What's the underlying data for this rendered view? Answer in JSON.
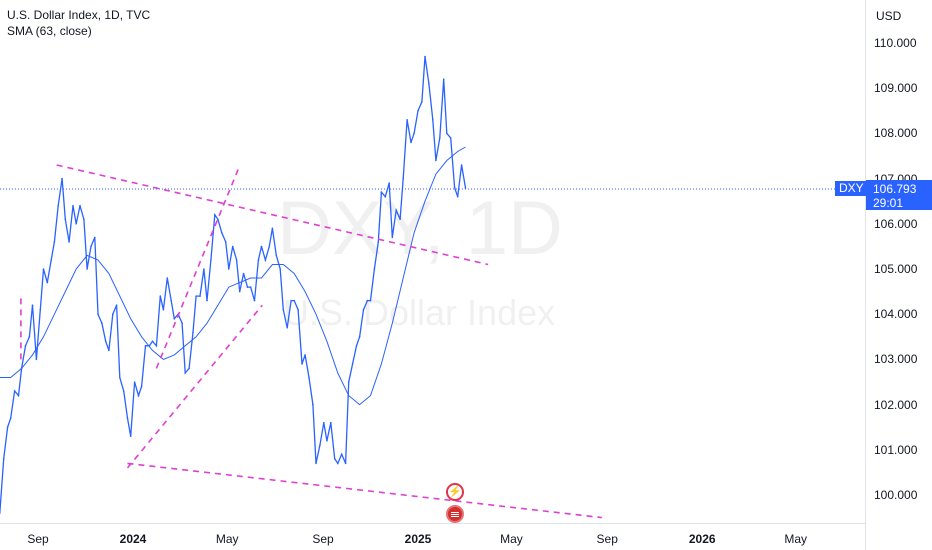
{
  "header": {
    "title": "U.S. Dollar Index, 1D, TVC",
    "indicator": "SMA (63, close)"
  },
  "watermark": {
    "symbol": "DXY, 1D",
    "name": "U.S. Dollar Index"
  },
  "price_scale": {
    "currency": "USD"
  },
  "last_price": {
    "ticker": "DXY",
    "value": "106.793",
    "countdown": "29:01"
  },
  "events": {
    "flash_icon": "lightning-icon",
    "flag_icon": "us-flag-icon"
  },
  "colors": {
    "price": "#2962ff",
    "sma": "#2962ff",
    "trendlines": "#e040d0",
    "last_price_tag": "#2962ff"
  },
  "chart_data": {
    "type": "line",
    "title": "U.S. Dollar Index, 1D, TVC",
    "xlabel": "",
    "ylabel": "",
    "ylim": [
      99.5,
      110.5
    ],
    "yticks": [
      "100.000",
      "101.000",
      "102.000",
      "103.000",
      "104.000",
      "105.000",
      "106.000",
      "107.000",
      "108.000",
      "109.000",
      "110.000"
    ],
    "xticks": [
      {
        "label": "Sep",
        "date": "2023-09-01",
        "major": false
      },
      {
        "label": "2024",
        "date": "2024-01-01",
        "major": true
      },
      {
        "label": "May",
        "date": "2024-05-01",
        "major": false
      },
      {
        "label": "Sep",
        "date": "2024-09-01",
        "major": false
      },
      {
        "label": "2025",
        "date": "2025-01-01",
        "major": true
      },
      {
        "label": "May",
        "date": "2025-05-01",
        "major": false
      },
      {
        "label": "Sep",
        "date": "2025-09-01",
        "major": false
      },
      {
        "label": "2026",
        "date": "2026-01-01",
        "major": true
      },
      {
        "label": "May",
        "date": "2026-05-01",
        "major": false
      }
    ],
    "series": [
      {
        "name": "U.S. Dollar Index",
        "points": [
          [
            "2023-07-14",
            99.6
          ],
          [
            "2023-07-19",
            100.8
          ],
          [
            "2023-07-24",
            101.5
          ],
          [
            "2023-07-28",
            101.7
          ],
          [
            "2023-08-02",
            102.3
          ],
          [
            "2023-08-07",
            102.2
          ],
          [
            "2023-08-11",
            102.8
          ],
          [
            "2023-08-16",
            103.3
          ],
          [
            "2023-08-21",
            103.5
          ],
          [
            "2023-08-25",
            104.2
          ],
          [
            "2023-08-30",
            103.0
          ],
          [
            "2023-09-04",
            104.1
          ],
          [
            "2023-09-08",
            105.0
          ],
          [
            "2023-09-13",
            104.7
          ],
          [
            "2023-09-18",
            105.2
          ],
          [
            "2023-09-22",
            105.6
          ],
          [
            "2023-09-27",
            106.4
          ],
          [
            "2023-10-02",
            107.0
          ],
          [
            "2023-10-06",
            106.1
          ],
          [
            "2023-10-11",
            105.6
          ],
          [
            "2023-10-16",
            106.4
          ],
          [
            "2023-10-20",
            106.0
          ],
          [
            "2023-10-25",
            106.4
          ],
          [
            "2023-10-30",
            106.1
          ],
          [
            "2023-11-03",
            105.0
          ],
          [
            "2023-11-08",
            105.5
          ],
          [
            "2023-11-13",
            105.7
          ],
          [
            "2023-11-17",
            104.0
          ],
          [
            "2023-11-22",
            103.8
          ],
          [
            "2023-11-27",
            103.4
          ],
          [
            "2023-12-01",
            103.2
          ],
          [
            "2023-12-06",
            104.0
          ],
          [
            "2023-12-11",
            104.2
          ],
          [
            "2023-12-15",
            102.6
          ],
          [
            "2023-12-20",
            102.3
          ],
          [
            "2023-12-25",
            101.7
          ],
          [
            "2023-12-29",
            101.3
          ],
          [
            "2024-01-03",
            102.5
          ],
          [
            "2024-01-08",
            102.2
          ],
          [
            "2024-01-12",
            102.4
          ],
          [
            "2024-01-17",
            103.3
          ],
          [
            "2024-01-22",
            103.3
          ],
          [
            "2024-01-26",
            103.4
          ],
          [
            "2024-01-31",
            103.3
          ],
          [
            "2024-02-05",
            104.4
          ],
          [
            "2024-02-09",
            104.1
          ],
          [
            "2024-02-14",
            104.8
          ],
          [
            "2024-02-19",
            104.3
          ],
          [
            "2024-02-23",
            103.9
          ],
          [
            "2024-02-28",
            104.0
          ],
          [
            "2024-03-04",
            103.8
          ],
          [
            "2024-03-08",
            102.7
          ],
          [
            "2024-03-13",
            102.8
          ],
          [
            "2024-03-18",
            103.6
          ],
          [
            "2024-03-22",
            104.4
          ],
          [
            "2024-03-27",
            104.4
          ],
          [
            "2024-04-01",
            105.0
          ],
          [
            "2024-04-05",
            104.3
          ],
          [
            "2024-04-10",
            105.2
          ],
          [
            "2024-04-15",
            106.2
          ],
          [
            "2024-04-19",
            106.1
          ],
          [
            "2024-04-24",
            105.8
          ],
          [
            "2024-04-29",
            105.6
          ],
          [
            "2024-05-03",
            105.0
          ],
          [
            "2024-05-08",
            105.5
          ],
          [
            "2024-05-13",
            105.2
          ],
          [
            "2024-05-17",
            104.5
          ],
          [
            "2024-05-22",
            104.9
          ],
          [
            "2024-05-27",
            104.6
          ],
          [
            "2024-05-31",
            104.6
          ],
          [
            "2024-06-05",
            104.3
          ],
          [
            "2024-06-10",
            105.2
          ],
          [
            "2024-06-14",
            105.5
          ],
          [
            "2024-06-19",
            105.2
          ],
          [
            "2024-06-24",
            105.5
          ],
          [
            "2024-06-28",
            105.9
          ],
          [
            "2024-07-03",
            105.3
          ],
          [
            "2024-07-08",
            105.0
          ],
          [
            "2024-07-12",
            104.1
          ],
          [
            "2024-07-17",
            103.7
          ],
          [
            "2024-07-22",
            104.3
          ],
          [
            "2024-07-26",
            104.3
          ],
          [
            "2024-07-31",
            104.1
          ],
          [
            "2024-08-05",
            102.9
          ],
          [
            "2024-08-09",
            103.1
          ],
          [
            "2024-08-14",
            102.6
          ],
          [
            "2024-08-19",
            102.0
          ],
          [
            "2024-08-23",
            100.7
          ],
          [
            "2024-08-28",
            101.1
          ],
          [
            "2024-09-02",
            101.6
          ],
          [
            "2024-09-06",
            101.2
          ],
          [
            "2024-09-11",
            101.6
          ],
          [
            "2024-09-16",
            100.8
          ],
          [
            "2024-09-20",
            100.7
          ],
          [
            "2024-09-25",
            100.9
          ],
          [
            "2024-09-30",
            100.7
          ],
          [
            "2024-10-04",
            102.5
          ],
          [
            "2024-10-09",
            102.9
          ],
          [
            "2024-10-14",
            103.3
          ],
          [
            "2024-10-18",
            103.5
          ],
          [
            "2024-10-23",
            104.1
          ],
          [
            "2024-10-28",
            104.3
          ],
          [
            "2024-11-01",
            104.3
          ],
          [
            "2024-11-06",
            105.0
          ],
          [
            "2024-11-11",
            105.6
          ],
          [
            "2024-11-15",
            106.7
          ],
          [
            "2024-11-20",
            106.6
          ],
          [
            "2024-11-25",
            106.9
          ],
          [
            "2024-11-29",
            105.7
          ],
          [
            "2024-12-04",
            106.3
          ],
          [
            "2024-12-09",
            106.1
          ],
          [
            "2024-12-13",
            107.0
          ],
          [
            "2024-12-18",
            108.3
          ],
          [
            "2024-12-23",
            107.8
          ],
          [
            "2024-12-27",
            108.0
          ],
          [
            "2025-01-01",
            108.5
          ],
          [
            "2025-01-06",
            108.7
          ],
          [
            "2025-01-10",
            109.7
          ],
          [
            "2025-01-15",
            109.1
          ],
          [
            "2025-01-20",
            108.3
          ],
          [
            "2025-01-24",
            107.4
          ],
          [
            "2025-01-29",
            107.9
          ],
          [
            "2025-02-03",
            109.2
          ],
          [
            "2025-02-07",
            108.0
          ],
          [
            "2025-02-12",
            107.9
          ],
          [
            "2025-02-17",
            106.8
          ],
          [
            "2025-02-21",
            106.6
          ],
          [
            "2025-02-26",
            107.3
          ],
          [
            "2025-03-03",
            106.793
          ]
        ]
      },
      {
        "name": "SMA (63, close)",
        "points": [
          [
            "2023-07-14",
            102.6
          ],
          [
            "2023-07-28",
            102.6
          ],
          [
            "2023-08-11",
            102.8
          ],
          [
            "2023-08-25",
            103.1
          ],
          [
            "2023-09-08",
            103.5
          ],
          [
            "2023-09-22",
            104.0
          ],
          [
            "2023-10-06",
            104.5
          ],
          [
            "2023-10-20",
            105.0
          ],
          [
            "2023-11-03",
            105.3
          ],
          [
            "2023-11-17",
            105.2
          ],
          [
            "2023-12-01",
            104.9
          ],
          [
            "2023-12-15",
            104.4
          ],
          [
            "2023-12-29",
            103.9
          ],
          [
            "2024-01-12",
            103.5
          ],
          [
            "2024-01-26",
            103.2
          ],
          [
            "2024-02-09",
            103.0
          ],
          [
            "2024-02-23",
            103.1
          ],
          [
            "2024-03-08",
            103.3
          ],
          [
            "2024-03-22",
            103.5
          ],
          [
            "2024-04-05",
            103.8
          ],
          [
            "2024-04-19",
            104.2
          ],
          [
            "2024-05-03",
            104.6
          ],
          [
            "2024-05-17",
            104.7
          ],
          [
            "2024-05-31",
            104.8
          ],
          [
            "2024-06-14",
            104.8
          ],
          [
            "2024-06-28",
            105.1
          ],
          [
            "2024-07-12",
            105.1
          ],
          [
            "2024-07-26",
            104.9
          ],
          [
            "2024-08-09",
            104.5
          ],
          [
            "2024-08-23",
            104.0
          ],
          [
            "2024-09-06",
            103.4
          ],
          [
            "2024-09-20",
            102.7
          ],
          [
            "2024-10-04",
            102.2
          ],
          [
            "2024-10-18",
            102.0
          ],
          [
            "2024-11-01",
            102.2
          ],
          [
            "2024-11-15",
            102.9
          ],
          [
            "2024-11-29",
            103.8
          ],
          [
            "2024-12-13",
            104.8
          ],
          [
            "2024-12-27",
            105.8
          ],
          [
            "2025-01-10",
            106.5
          ],
          [
            "2025-01-24",
            107.1
          ],
          [
            "2025-02-07",
            107.4
          ],
          [
            "2025-02-21",
            107.6
          ],
          [
            "2025-03-03",
            107.7
          ]
        ]
      }
    ],
    "trendlines": [
      {
        "name": "upper-channel-line",
        "from": [
          "2023-09-25",
          107.3
        ],
        "to": [
          "2025-04-01",
          105.1
        ]
      },
      {
        "name": "lower-channel-line",
        "from": [
          "2023-12-25",
          100.7
        ],
        "to": [
          "2025-08-25",
          99.5
        ]
      },
      {
        "name": "flag-lower-line",
        "from": [
          "2023-12-25",
          100.6
        ],
        "to": [
          "2024-06-15",
          104.2
        ]
      },
      {
        "name": "flag-upper-line",
        "from": [
          "2024-01-31",
          102.8
        ],
        "to": [
          "2024-05-15",
          107.2
        ]
      },
      {
        "name": "early-tick-line",
        "from": [
          "2023-08-10",
          103.0
        ],
        "to": [
          "2023-08-10",
          104.4
        ]
      }
    ]
  }
}
